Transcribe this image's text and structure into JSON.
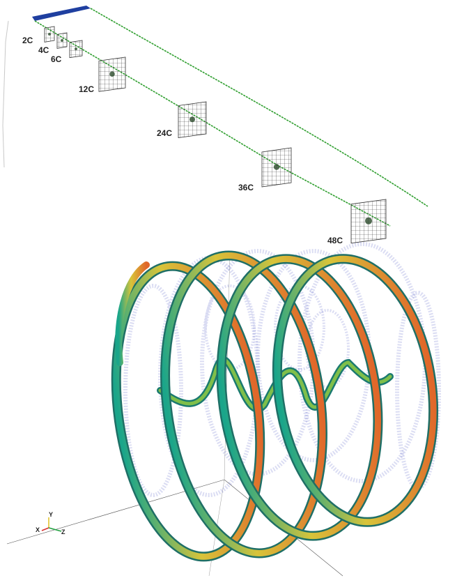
{
  "top_panel": {
    "stations": [
      {
        "label": "2C"
      },
      {
        "label": "4C"
      },
      {
        "label": "6C"
      },
      {
        "label": "12C"
      },
      {
        "label": "24C"
      },
      {
        "label": "36C"
      },
      {
        "label": "48C"
      }
    ],
    "colors": {
      "wake_line": "#2e9e2e",
      "blade_block": "#1f3fa0",
      "grid": "#333333"
    }
  },
  "bottom_panel": {
    "axes_triad": {
      "y": "Y",
      "x": "X",
      "z": "Z"
    },
    "colors": {
      "tube_outer": "#e0672a",
      "tube_mid": "#d8c43a",
      "tube_inner": "#1aa58a",
      "iso_volume": "#5a64c8",
      "x_axis": "#d83030",
      "y_axis": "#e0c020",
      "z_axis": "#20a040"
    }
  }
}
